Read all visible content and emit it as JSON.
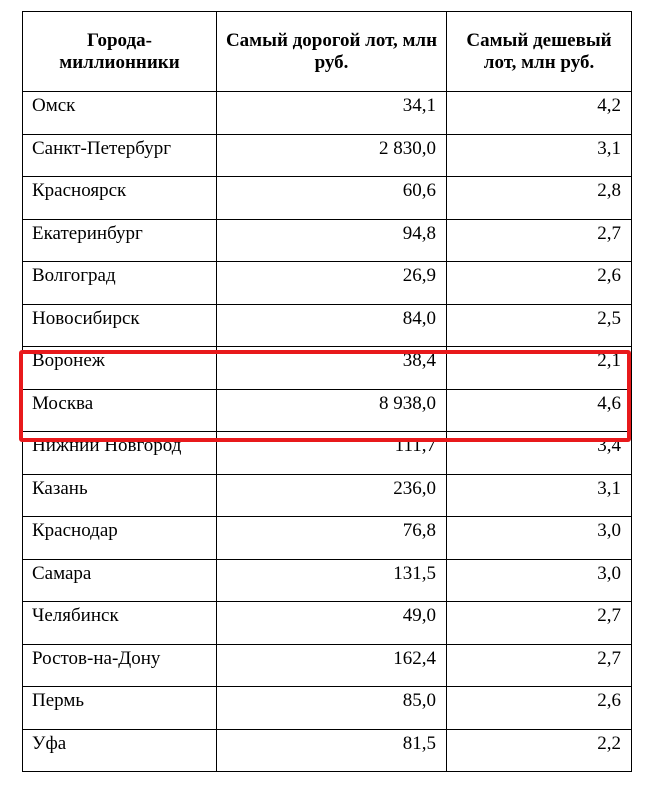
{
  "colors": {
    "highlight": "#e8191b",
    "border": "#000000",
    "text": "#000000",
    "background": "#ffffff"
  },
  "table": {
    "headers": [
      "Города-миллионники",
      "Самый дорогой лот, млн руб.",
      "Самый дешевый лот, млн руб."
    ],
    "rows": [
      {
        "city": "Омск",
        "max": "34,1",
        "min": "4,2"
      },
      {
        "city": "Санкт-Петербург",
        "max": "2 830,0",
        "min": "3,1"
      },
      {
        "city": "Красноярск",
        "max": "60,6",
        "min": "2,8"
      },
      {
        "city": "Екатеринбург",
        "max": "94,8",
        "min": "2,7"
      },
      {
        "city": "Волгоград",
        "max": "26,9",
        "min": "2,6"
      },
      {
        "city": "Новосибирск",
        "max": "84,0",
        "min": "2,5"
      },
      {
        "city": "Воронеж",
        "max": "38,4",
        "min": "2,1"
      },
      {
        "city": "Москва",
        "max": "8 938,0",
        "min": "4,6"
      },
      {
        "city": "Нижний Новгород",
        "max": "111,7",
        "min": "3,4"
      },
      {
        "city": "Казань",
        "max": "236,0",
        "min": "3,1"
      },
      {
        "city": "Краснодар",
        "max": "76,8",
        "min": "3,0"
      },
      {
        "city": "Самара",
        "max": "131,5",
        "min": "3,0"
      },
      {
        "city": "Челябинск",
        "max": "49,0",
        "min": "2,7"
      },
      {
        "city": "Ростов-на-Дону",
        "max": "162,4",
        "min": "2,7"
      },
      {
        "city": "Пермь",
        "max": "85,0",
        "min": "2,6"
      },
      {
        "city": "Уфа",
        "max": "81,5",
        "min": "2,2"
      }
    ]
  }
}
